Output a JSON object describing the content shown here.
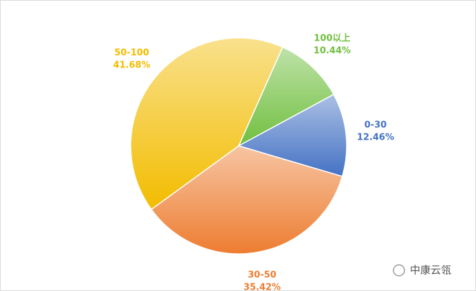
{
  "chart_data": {
    "type": "pie",
    "categories": [
      "100以上",
      "0-30",
      "30-50",
      "50-100"
    ],
    "values": [
      10.44,
      12.46,
      35.42,
      41.68
    ],
    "value_labels": [
      "10.44%",
      "12.46%",
      "35.42%",
      "41.68%"
    ],
    "colors": [
      "#70bf3f",
      "#4472c4",
      "#ed7d31",
      "#f2bc00"
    ],
    "watermark": "中康云瓴"
  }
}
